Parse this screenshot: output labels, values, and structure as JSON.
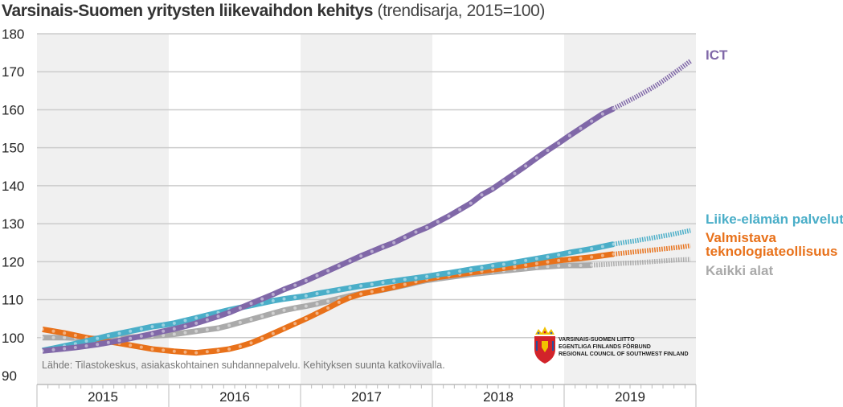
{
  "title": {
    "main": "Varsinais-Suomen yritysten liikevaihdon kehitys",
    "sub": "(trendisarja, 2015=100)"
  },
  "source_note": "Lähde: Tilastokeskus, asiakaskohtainen suhdannepalvelu. Kehityksen suunta katkoviivalla.",
  "organization": {
    "lines": [
      "VARSINAIS-SUOMEN LIITTO",
      "EGENTLIGA FINLANDS FÖRBUND",
      "REGIONAL COUNCIL OF SOUTHWEST FINLAND"
    ],
    "logo_icon": "coat-of-arms-icon"
  },
  "chart_data": {
    "type": "line",
    "title": "Varsinais-Suomen yritysten liikevaihdon kehitys (trendisarja, 2015=100)",
    "xlabel": "",
    "ylabel": "",
    "ylim": [
      90,
      180
    ],
    "yticks": [
      90,
      100,
      110,
      120,
      130,
      140,
      150,
      160,
      170,
      180
    ],
    "categories": [
      "2015",
      "2016",
      "2017",
      "2018",
      "2019"
    ],
    "months_per_category": 12,
    "grid": true,
    "shaded_years": [
      "2015",
      "2017",
      "2019"
    ],
    "legend_placement": "right",
    "series": [
      {
        "name": "ICT",
        "color": "#8068a8",
        "trend_from_index": 52,
        "values": [
          96.5,
          96.8,
          97.1,
          97.4,
          97.8,
          98.2,
          98.7,
          99.2,
          99.8,
          100.4,
          101.0,
          101.7,
          102.3,
          103.0,
          103.8,
          104.7,
          105.6,
          106.6,
          107.8,
          109.0,
          110.2,
          111.4,
          112.7,
          113.8,
          115.0,
          116.3,
          117.6,
          118.9,
          120.2,
          121.5,
          122.7,
          123.9,
          125.0,
          126.4,
          127.8,
          129.0,
          130.5,
          132.0,
          133.7,
          135.4,
          137.6,
          139.2,
          141.2,
          143.2,
          145.2,
          147.3,
          149.3,
          151.2,
          153.2,
          155.1,
          157.0,
          158.9,
          160.3,
          161.8,
          163.3,
          164.9,
          166.6,
          168.6,
          170.7,
          172.8
        ]
      },
      {
        "name": "Liike-elämän palvelut",
        "color": "#4aaec8",
        "trend_from_index": 52,
        "values": [
          96.6,
          97.2,
          97.8,
          98.4,
          99.1,
          99.8,
          100.5,
          101.1,
          101.7,
          102.3,
          102.9,
          103.3,
          103.8,
          104.5,
          105.2,
          105.9,
          106.6,
          107.3,
          107.9,
          108.5,
          109.1,
          109.7,
          110.2,
          110.6,
          111.0,
          111.6,
          112.1,
          112.6,
          113.1,
          113.6,
          114.0,
          114.5,
          114.9,
          115.3,
          115.7,
          116.1,
          116.6,
          117.0,
          117.5,
          118.0,
          118.4,
          118.9,
          119.3,
          119.8,
          120.3,
          120.8,
          121.3,
          121.8,
          122.4,
          122.9,
          123.4,
          124.0,
          124.6,
          125.1,
          125.5,
          126.0,
          126.5,
          127.0,
          127.6,
          128.2
        ]
      },
      {
        "name": "Valmistava teknologiateollisuus",
        "color": "#e8711a",
        "trend_from_index": 52,
        "values": [
          102.2,
          101.7,
          101.2,
          100.6,
          100.0,
          99.5,
          99.0,
          98.5,
          98.0,
          97.5,
          97.0,
          96.7,
          96.4,
          96.2,
          96.0,
          96.3,
          96.6,
          97.0,
          97.7,
          98.6,
          99.8,
          101.1,
          102.4,
          103.7,
          105.0,
          106.4,
          107.8,
          109.3,
          110.6,
          111.5,
          112.1,
          112.7,
          113.3,
          114.0,
          114.7,
          115.4,
          115.9,
          116.3,
          116.7,
          117.1,
          117.5,
          117.9,
          118.3,
          118.7,
          119.1,
          119.5,
          119.9,
          120.3,
          120.6,
          120.9,
          121.2,
          121.6,
          122.0,
          122.3,
          122.6,
          122.9,
          123.2,
          123.5,
          123.8,
          124.2
        ]
      },
      {
        "name": "Kaikki alat",
        "color": "#aaaaaa",
        "trend_from_index": 50,
        "values": [
          100.0,
          100.0,
          100.0,
          99.9,
          99.8,
          99.8,
          99.9,
          100.0,
          100.1,
          100.2,
          100.4,
          100.6,
          100.9,
          101.3,
          101.7,
          102.1,
          102.5,
          103.2,
          104.0,
          104.8,
          105.6,
          106.4,
          107.2,
          107.8,
          108.3,
          108.9,
          109.6,
          110.3,
          111.0,
          111.6,
          112.1,
          112.6,
          113.2,
          113.8,
          114.5,
          115.1,
          115.5,
          115.9,
          116.3,
          116.7,
          117.0,
          117.3,
          117.6,
          117.9,
          118.2,
          118.5,
          118.7,
          118.9,
          119.0,
          119.0,
          119.1,
          119.2,
          119.4,
          119.6,
          119.7,
          119.9,
          120.1,
          120.3,
          120.5,
          120.6
        ]
      }
    ]
  }
}
